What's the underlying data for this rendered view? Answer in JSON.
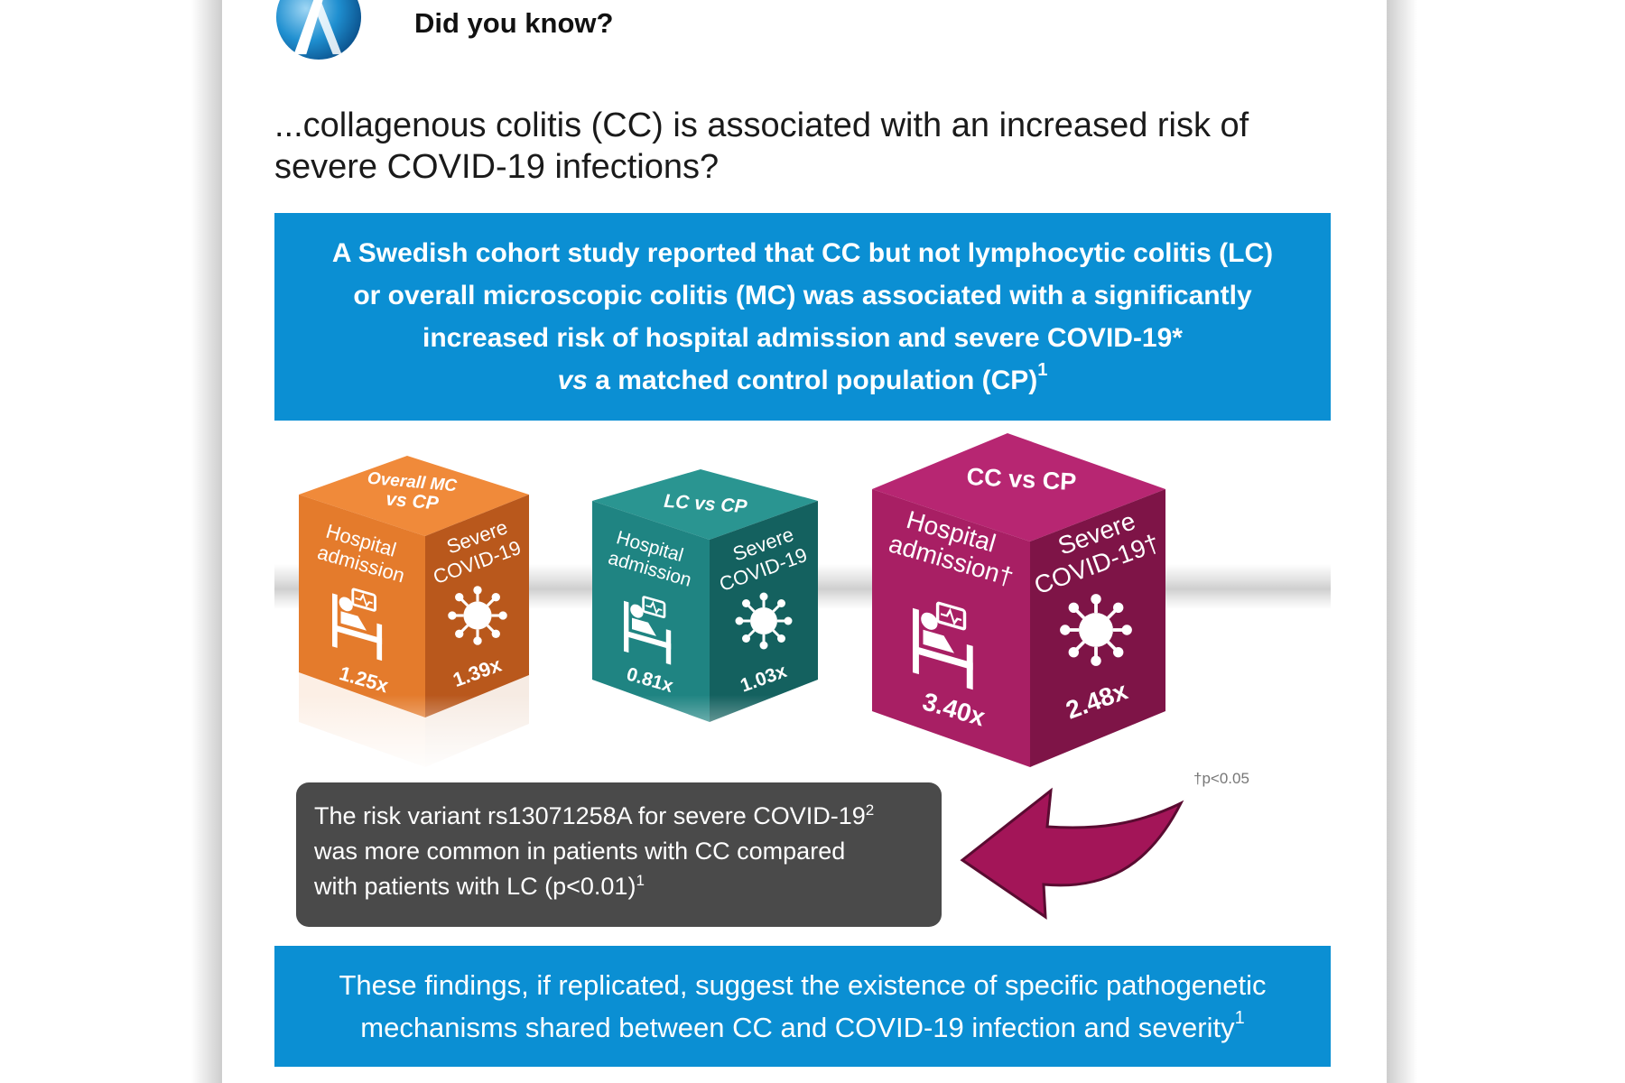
{
  "header": {
    "title": "Did you know?"
  },
  "intro": "...collagenous colitis (CC) is associated with an increased risk of severe COVID-19 infections?",
  "top_box": {
    "line1": "A Swedish cohort study reported that CC but not lymphocytic colitis (LC)",
    "line2": "or overall microscopic colitis (MC) was associated with a significantly",
    "line3": "increased risk of hospital admission and severe COVID-19*",
    "line4_vs": "vs",
    "line4_rest": " a matched control population (CP)",
    "line4_ref": "1"
  },
  "cubes": [
    {
      "top_line1": "Overall MC",
      "top_line2": "vs CP",
      "left_line1": "Hospital",
      "left_line2": "admission",
      "left_value": "1.25x",
      "right_line1": "Severe",
      "right_line2": "COVID-19",
      "right_value": "1.39x"
    },
    {
      "top_line1": "LC vs CP",
      "left_line1": "Hospital",
      "left_line2": "admission",
      "left_value": "0.81x",
      "right_line1": "Severe",
      "right_line2": "COVID-19",
      "right_value": "1.03x"
    },
    {
      "top_line1": "CC vs CP",
      "left_line1": "Hospital",
      "left_line2": "admission†",
      "left_value": "3.40x",
      "right_line1": "Severe",
      "right_line2": "COVID-19†",
      "right_value": "2.48x"
    }
  ],
  "colors": {
    "brand_blue": "#0b8fd3",
    "mc_top": "#f08a3a",
    "mc_left": "#e47b2c",
    "mc_right": "#b9581c",
    "lc_top": "#2a9591",
    "lc_left": "#1f8482",
    "lc_right": "#14615f",
    "cc_top": "#b72672",
    "cc_left": "#a81f64",
    "cc_right": "#7e1447",
    "grey_box": "#4a4a4a",
    "arrow": "#a31558"
  },
  "pnote": "†p<0.05",
  "grey_box": {
    "line1": "The risk variant rs13071258A for severe COVID-19",
    "line1_ref": "2",
    "line2": "was more common in patients with CC compared",
    "line3": "with patients with LC (p<0.01)",
    "line3_ref": "1"
  },
  "bottom_box": {
    "line1": "These findings, if replicated, suggest the existence of specific pathogenetic",
    "line2": "mechanisms shared between CC and COVID-19 infection and severity",
    "ref": "1"
  }
}
